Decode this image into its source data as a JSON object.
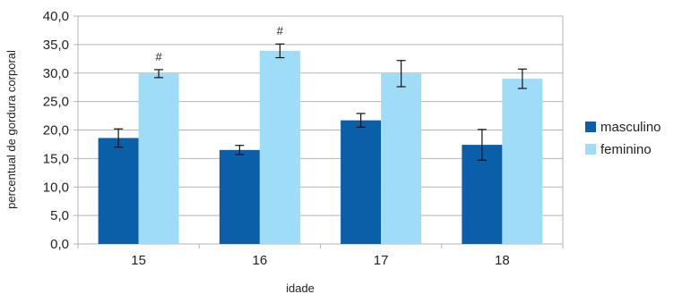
{
  "chart_data": {
    "type": "bar",
    "title": "",
    "xlabel": "idade",
    "ylabel": "percentual de gordura corporal",
    "categories": [
      "15",
      "16",
      "17",
      "18"
    ],
    "series": [
      {
        "name": "masculino",
        "color": "#0a5fa8",
        "values": [
          18.6,
          16.5,
          21.7,
          17.4
        ],
        "errors": [
          1.6,
          0.8,
          1.2,
          2.7
        ]
      },
      {
        "name": "feminino",
        "color": "#9fdcf8",
        "values": [
          29.9,
          33.9,
          29.9,
          29.0
        ],
        "errors": [
          0.7,
          1.2,
          2.3,
          1.7
        ]
      }
    ],
    "ylim": [
      0,
      40
    ],
    "yticks": [
      "0,0",
      "5,0",
      "10,0",
      "15,0",
      "20,0",
      "25,0",
      "30,0",
      "35,0",
      "40,0"
    ],
    "grid": true,
    "legend_position": "right",
    "annotations": [
      {
        "text": "#",
        "category": "15",
        "series": "feminino"
      },
      {
        "text": "#",
        "category": "16",
        "series": "feminino"
      }
    ]
  }
}
